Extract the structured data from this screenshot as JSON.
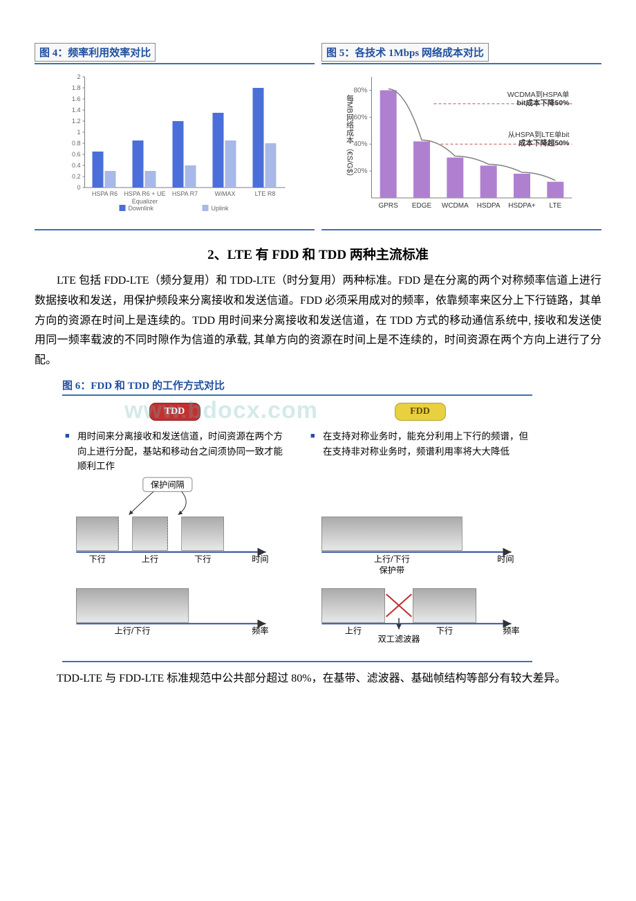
{
  "chart4": {
    "title": "图 4：频率利用效率对比",
    "type": "bar",
    "categories": [
      "HSPA R6",
      "HSPA R6 + UE Equalizer",
      "HSPA R7",
      "WiMAX",
      "LTE R8"
    ],
    "series": [
      {
        "name": "Downlink",
        "color": "#4a6fd8",
        "values": [
          0.65,
          0.85,
          1.2,
          1.35,
          1.8
        ]
      },
      {
        "name": "Uplink",
        "color": "#a8b8e8",
        "values": [
          0.3,
          0.3,
          0.4,
          0.85,
          0.8
        ]
      }
    ],
    "ylim": [
      0,
      2.0
    ],
    "yticks": [
      0,
      0.2,
      0.4,
      0.6,
      0.8,
      1.0,
      1.2,
      1.4,
      1.6,
      1.8,
      2.0
    ],
    "legend_labels": [
      "Downlink",
      "Uplink"
    ],
    "legend_colors": [
      "#4a6fd8",
      "#a8b8e8"
    ],
    "axis_color": "#7d7d7d",
    "tick_fontsize": 9,
    "label_fontsize": 9
  },
  "chart5": {
    "title": "图 5：各技术 1Mbps 网络成本对比",
    "type": "bar+line",
    "ylabel": "每MB网络成本（€S/G$）",
    "categories": [
      "GPRS",
      "EDGE",
      "WCDMA",
      "HSDPA",
      "HSDPA+",
      "LTE"
    ],
    "bar_values": [
      80,
      42,
      30,
      24,
      18,
      12
    ],
    "bar_color": "#b080d0",
    "curve_color": "#808080",
    "ylim": [
      0,
      90
    ],
    "yticks": [
      20,
      40,
      60,
      80
    ],
    "annotations": [
      {
        "text1": "WCDMA到HSPA单",
        "text2": "bit成本下降50%",
        "y": 70
      },
      {
        "text1": "从HSPA到LTE单bit",
        "text2": "成本下降超50%",
        "y": 40
      }
    ],
    "annotation_line_color": "#c05050",
    "axis_color": "#7d7d7d"
  },
  "section2": {
    "heading": "2、LTE 有 FDD 和 TDD 两种主流标准",
    "para1": "LTE 包括 FDD-LTE（频分复用）和 TDD-LTE（时分复用）两种标准。FDD 是在分离的两个对称频率信道上进行数据接收和发送，用保护频段来分离接收和发送信道。FDD 必须采用成对的频率，依靠频率来区分上下行链路，其单方向的资源在时间上是连续的。TDD 用时间来分离接收和发送信道，在 TDD 方式的移动通信系统中, 接收和发送使用同一频率载波的不同时隙作为信道的承载, 其单方向的资源在时间上是不连续的，时间资源在两个方向上进行了分配。",
    "para2": "TDD-LTE 与 FDD-LTE 标准规范中公共部分超过 80%，在基带、滤波器、基础帧结构等部分有较大差异。"
  },
  "fig6": {
    "title": "图 6：FDD 和 TDD 的工作方式对比",
    "tdd": {
      "label": "TDD",
      "desc": "用时间来分离接收和发送信道，时间资源在两个方向上进行分配，基站和移动台之间须协同一致才能顺利工作",
      "guard_label": "保护间隔",
      "time_axis": "时间",
      "freq_axis": "频率",
      "time_slots": [
        "下行",
        "上行",
        "下行"
      ],
      "freq_band": "上行/下行"
    },
    "fdd": {
      "label": "FDD",
      "desc": "在支持对称业务时，能充分利用上下行的频谱，但在支持非对称业务时，频谱利用率将大大降低",
      "time_axis": "时间",
      "freq_axis": "频率",
      "time_band": "上行/下行",
      "guard_band": "保护带",
      "freq_bands": [
        "上行",
        "下行"
      ],
      "duplexer": "双工滤波器"
    },
    "block_fill_top": "#aaaaaa",
    "block_fill_bottom": "#e8e8e8",
    "arrow_color": "#3050a0",
    "text_color": "#000000"
  },
  "watermark": "www.bdocx.com"
}
